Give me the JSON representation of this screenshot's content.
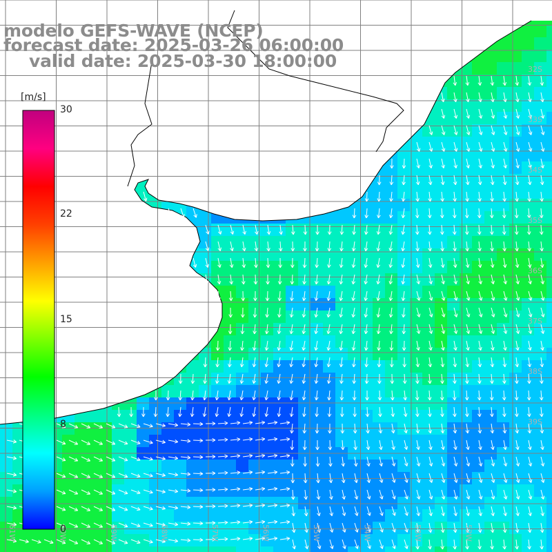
{
  "title": {
    "model": "modelo GEFS-WAVE (NCEP)",
    "forecast": "forecast date: 2025-03-26 06:00:00",
    "valid": "valid date: 2025-03-30 18:00:00"
  },
  "colorbar": {
    "unit": "[m/s]",
    "ticks": [
      "30",
      "22",
      "15",
      "8",
      "0"
    ],
    "tick_values": [
      30,
      22,
      15,
      8,
      0
    ],
    "colors": [
      "#0000ff",
      "#00a0ff",
      "#00ffff",
      "#00ff80",
      "#00ff00",
      "#80ff00",
      "#ffff00",
      "#ffa000",
      "#ff4000",
      "#ff0000",
      "#ff0080",
      "#c0007f"
    ]
  },
  "map": {
    "lat_labels": [
      "32S",
      "33S",
      "34S",
      "35S",
      "36S",
      "37S",
      "38S",
      "39S"
    ],
    "lon_labels": [
      "61W",
      "60W",
      "59W",
      "58W",
      "57W",
      "56W",
      "55W",
      "54W",
      "53W",
      "52W"
    ],
    "field_colors": {
      "land": "#ffffff",
      "grid": "#7f7f7f",
      "coast": "#000000",
      "arrows": "#ffffff"
    }
  }
}
